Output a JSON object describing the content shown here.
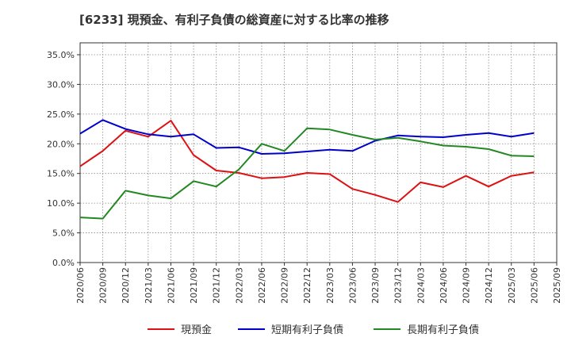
{
  "chart_data": {
    "type": "line",
    "title": "[6233]  現預金、有利子負債の総資産に対する比率の推移",
    "xlabel": "",
    "ylabel": "",
    "ylim": [
      0,
      37
    ],
    "y_ticks": [
      0,
      5,
      10,
      15,
      20,
      25,
      30,
      35
    ],
    "y_tick_labels": [
      "0.0%",
      "5.0%",
      "10.0%",
      "15.0%",
      "20.0%",
      "25.0%",
      "30.0%",
      "35.0%"
    ],
    "grid": true,
    "legend_position": "bottom",
    "x": [
      "2020/06",
      "2020/09",
      "2020/12",
      "2021/03",
      "2021/06",
      "2021/09",
      "2021/12",
      "2022/03",
      "2022/06",
      "2022/09",
      "2022/12",
      "2023/03",
      "2023/06",
      "2023/09",
      "2023/12",
      "2024/03",
      "2024/06",
      "2024/09",
      "2024/12",
      "2025/03",
      "2025/06",
      "2025/09"
    ],
    "series": [
      {
        "name": "現預金",
        "color": "#dd1111",
        "values": [
          16.2,
          18.8,
          22.2,
          21.2,
          23.9,
          18.1,
          15.5,
          15.1,
          14.2,
          14.4,
          15.1,
          14.9,
          12.4,
          11.4,
          10.2,
          13.5,
          12.7,
          14.6,
          12.8,
          14.6,
          15.2,
          null
        ]
      },
      {
        "name": "短期有利子負債",
        "color": "#0000cc",
        "values": [
          21.7,
          24.0,
          22.5,
          21.6,
          21.2,
          21.6,
          19.3,
          19.4,
          18.3,
          18.4,
          18.7,
          19.0,
          18.8,
          20.5,
          21.4,
          21.2,
          21.1,
          21.5,
          21.8,
          21.2,
          21.8,
          null
        ]
      },
      {
        "name": "長期有利子負債",
        "color": "#228822",
        "values": [
          7.6,
          7.4,
          12.1,
          11.3,
          10.8,
          13.7,
          12.8,
          15.7,
          20.0,
          18.8,
          22.6,
          22.4,
          21.5,
          20.7,
          21.0,
          20.4,
          19.7,
          19.5,
          19.1,
          18.0,
          17.9,
          null
        ]
      }
    ]
  }
}
